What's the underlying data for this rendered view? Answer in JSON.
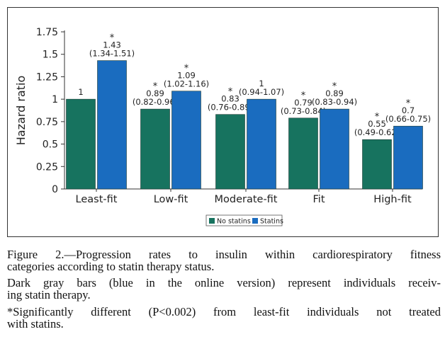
{
  "chart_data": {
    "type": "bar",
    "title": "",
    "xlabel": "",
    "ylabel": "Hazard ratio",
    "ylim": [
      0,
      1.75
    ],
    "yticks": [
      "0",
      "0.25",
      "0.5",
      "0.75",
      "1",
      "1.25",
      "1.5",
      "1.75"
    ],
    "categories": [
      "Least-fit",
      "Low-fit",
      "Moderate-fit",
      "Fit",
      "High-fit"
    ],
    "series": [
      {
        "name": "No statins",
        "color": "#17735f",
        "values": [
          1,
          0.89,
          0.83,
          0.79,
          0.55
        ],
        "labels": [
          "1",
          "0.89",
          "0.83",
          "0.79",
          "0.55"
        ],
        "ci": [
          "",
          "(0.82-0.96)",
          "(0.76-0.89)",
          "(0.73-0.84)",
          "(0.49-0.62)"
        ],
        "significant": [
          false,
          true,
          true,
          true,
          true
        ]
      },
      {
        "name": "Statins",
        "color": "#1a6cbf",
        "values": [
          1.43,
          1.09,
          1,
          0.89,
          0.7
        ],
        "labels": [
          "1.43",
          "1.09",
          "1",
          "0.89",
          "0.7"
        ],
        "ci": [
          "(1.34-1.51)",
          "(1.02-1.16)",
          "(0.94-1.07)",
          "(0.83-0.94)",
          "(0.66-0.75)"
        ],
        "significant": [
          true,
          true,
          false,
          true,
          true
        ]
      }
    ],
    "significance_marker": "*",
    "legend": [
      "No statins",
      "Statins"
    ],
    "legend_position": "bottom-center"
  },
  "caption": {
    "line1": "Figure 2.—Progression rates to insulin within cardiorespiratory fitness",
    "line2": "categories according to statin therapy status.",
    "line3": "Dark gray bars (blue in the online version) represent individuals receiv-",
    "line4": "ing statin therapy.",
    "line5": "*Significantly different (P<0.002) from least-fit individuals not treated",
    "line6": "with statins."
  }
}
